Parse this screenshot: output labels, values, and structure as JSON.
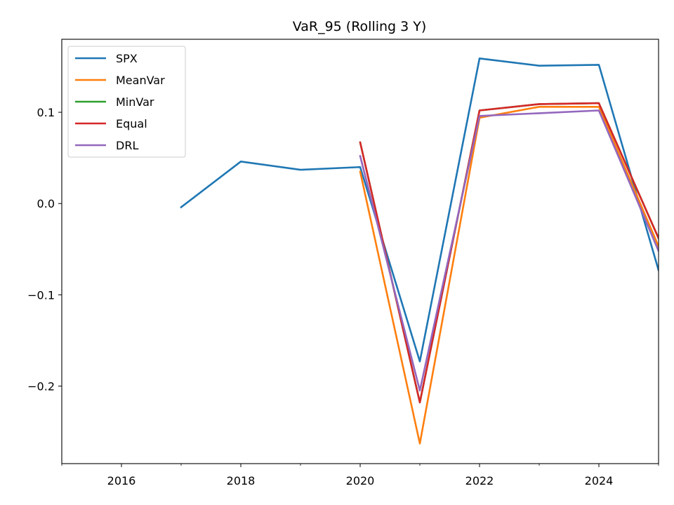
{
  "chart_data": {
    "type": "line",
    "title": "VaR_95 (Rolling 3 Y)",
    "xlabel": "",
    "ylabel": "",
    "xlim": [
      2015,
      2025
    ],
    "ylim": [
      -0.285,
      0.18
    ],
    "x_ticks_major": [
      2016,
      2018,
      2020,
      2022,
      2024
    ],
    "x_tick_labels": [
      "2016",
      "2018",
      "2020",
      "2022",
      "2024"
    ],
    "x_ticks_minor": [
      2015,
      2017,
      2019,
      2021,
      2023,
      2025
    ],
    "y_ticks": [
      -0.2,
      -0.1,
      0.0,
      0.1
    ],
    "y_tick_labels": [
      "−0.2",
      "−0.1",
      "0.0",
      "0.1"
    ],
    "grid": false,
    "legend_position": "top-left",
    "series": [
      {
        "name": "SPX",
        "color": "#1f77b4",
        "x": [
          2017,
          2018,
          2019,
          2020,
          2021,
          2022,
          2023,
          2024,
          2025
        ],
        "y": [
          -0.004,
          0.046,
          0.037,
          0.04,
          -0.173,
          0.159,
          0.151,
          0.152,
          -0.073
        ]
      },
      {
        "name": "MeanVar",
        "color": "#ff7f0e",
        "x": [
          2020,
          2021,
          2022,
          2023,
          2024,
          2025
        ],
        "y": [
          0.035,
          -0.263,
          0.094,
          0.106,
          0.106,
          -0.047
        ]
      },
      {
        "name": "MinVar",
        "color": "#2ca02c",
        "x": [
          2020,
          2021,
          2022,
          2023,
          2024,
          2025
        ],
        "y": [
          0.067,
          -0.218,
          0.102,
          0.109,
          0.11,
          -0.038
        ]
      },
      {
        "name": "Equal",
        "color": "#d62728",
        "x": [
          2020,
          2021,
          2022,
          2023,
          2024,
          2025
        ],
        "y": [
          0.067,
          -0.218,
          0.102,
          0.109,
          0.11,
          -0.038
        ]
      },
      {
        "name": "DRL",
        "color": "#9467bd",
        "x": [
          2020,
          2021,
          2022,
          2023,
          2024,
          2025
        ],
        "y": [
          0.052,
          -0.205,
          0.096,
          0.099,
          0.102,
          -0.052
        ]
      }
    ]
  }
}
